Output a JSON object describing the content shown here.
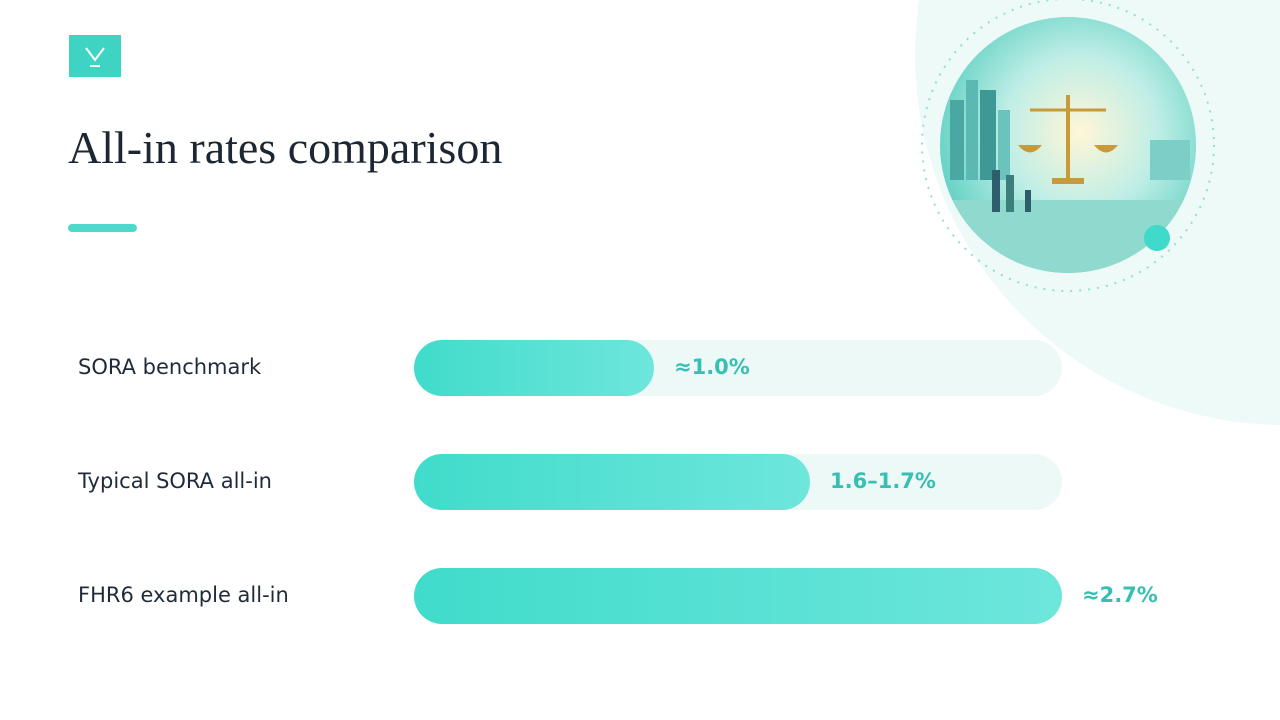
{
  "chart_data": {
    "type": "bar",
    "orientation": "horizontal",
    "title": "All-in rates comparison",
    "categories": [
      "SORA benchmark",
      "Typical SORA all-in",
      "FHR6 example all-in"
    ],
    "values": [
      1.0,
      1.65,
      2.7
    ],
    "value_labels": [
      "≈1.0%",
      "1.6–1.7%",
      "≈2.7%"
    ],
    "xlim": [
      0,
      2.7
    ],
    "color": "#40dccb"
  }
}
